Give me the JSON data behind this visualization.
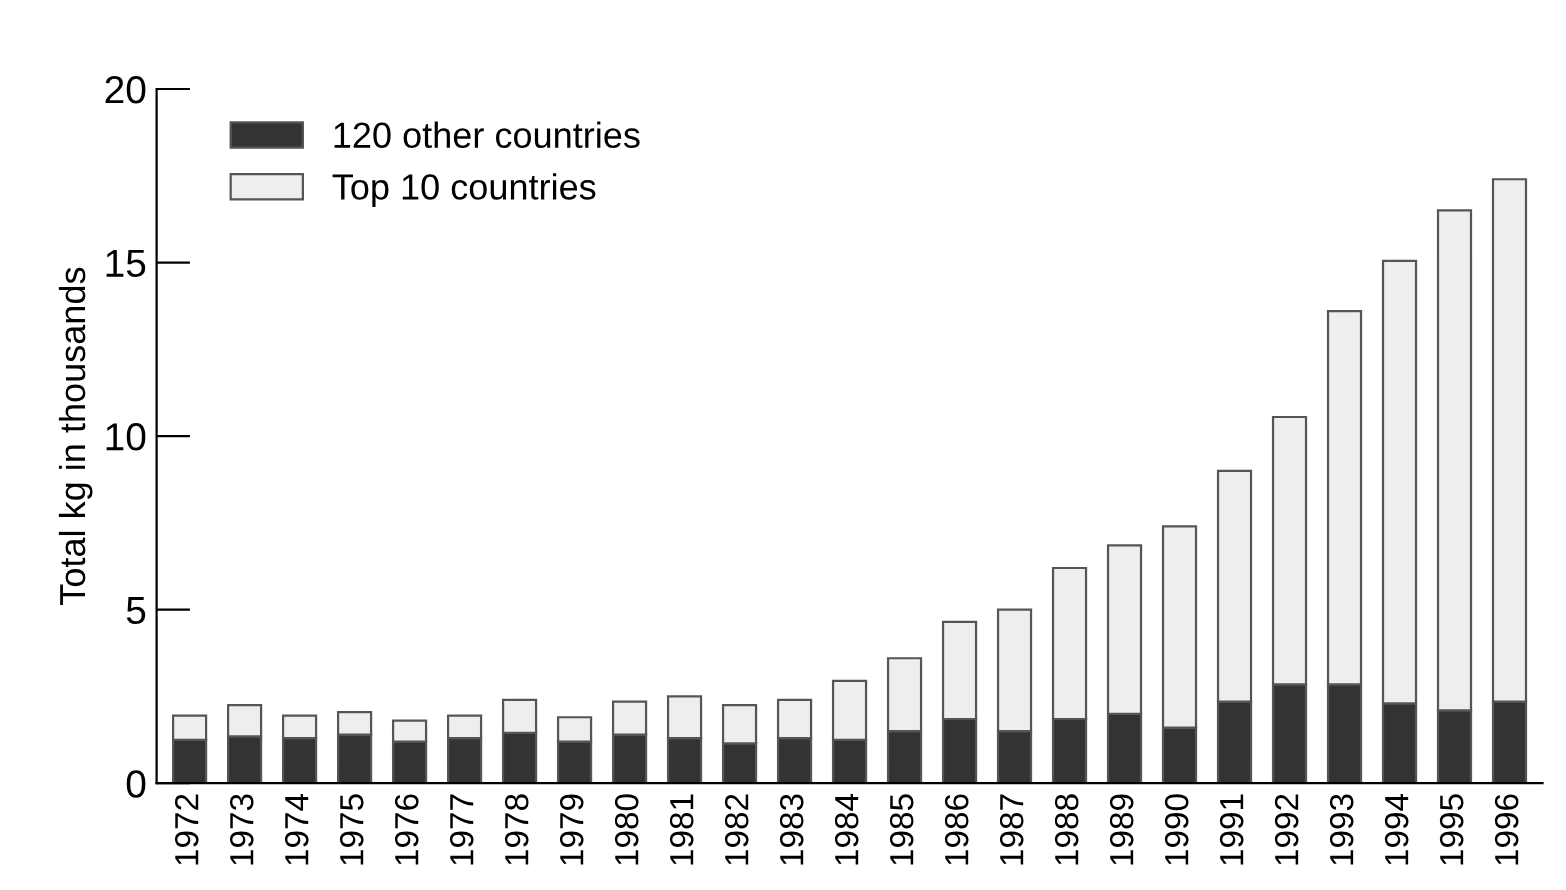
{
  "chart_data": {
    "type": "bar",
    "stacked": true,
    "ylabel": "Total kg in thousands",
    "categories": [
      "1972",
      "1973",
      "1974",
      "1975",
      "1976",
      "1977",
      "1978",
      "1979",
      "1980",
      "1981",
      "1982",
      "1983",
      "1984",
      "1985",
      "1986",
      "1987",
      "1988",
      "1989",
      "1990",
      "1991",
      "1992",
      "1993",
      "1994",
      "1995",
      "1996"
    ],
    "series": [
      {
        "name": "120 other countries",
        "color": "#333333",
        "values": [
          1.25,
          1.35,
          1.3,
          1.4,
          1.2,
          1.3,
          1.45,
          1.2,
          1.4,
          1.3,
          1.15,
          1.3,
          1.25,
          1.5,
          1.85,
          1.5,
          1.85,
          2.0,
          1.6,
          2.35,
          2.85,
          2.85,
          2.3,
          2.1,
          2.35
        ]
      },
      {
        "name": "Top 10 countries",
        "color": "#eeeeee",
        "values": [
          0.7,
          0.9,
          0.65,
          0.65,
          0.6,
          0.65,
          0.95,
          0.7,
          0.95,
          1.2,
          1.1,
          1.1,
          1.7,
          2.1,
          2.8,
          3.5,
          4.35,
          4.85,
          5.8,
          6.65,
          7.7,
          10.75,
          12.75,
          14.4,
          15.05
        ]
      }
    ],
    "ylim": [
      0,
      20
    ],
    "yticks": [
      0,
      5,
      10,
      15,
      20
    ],
    "grid": false,
    "legend": "top left"
  }
}
